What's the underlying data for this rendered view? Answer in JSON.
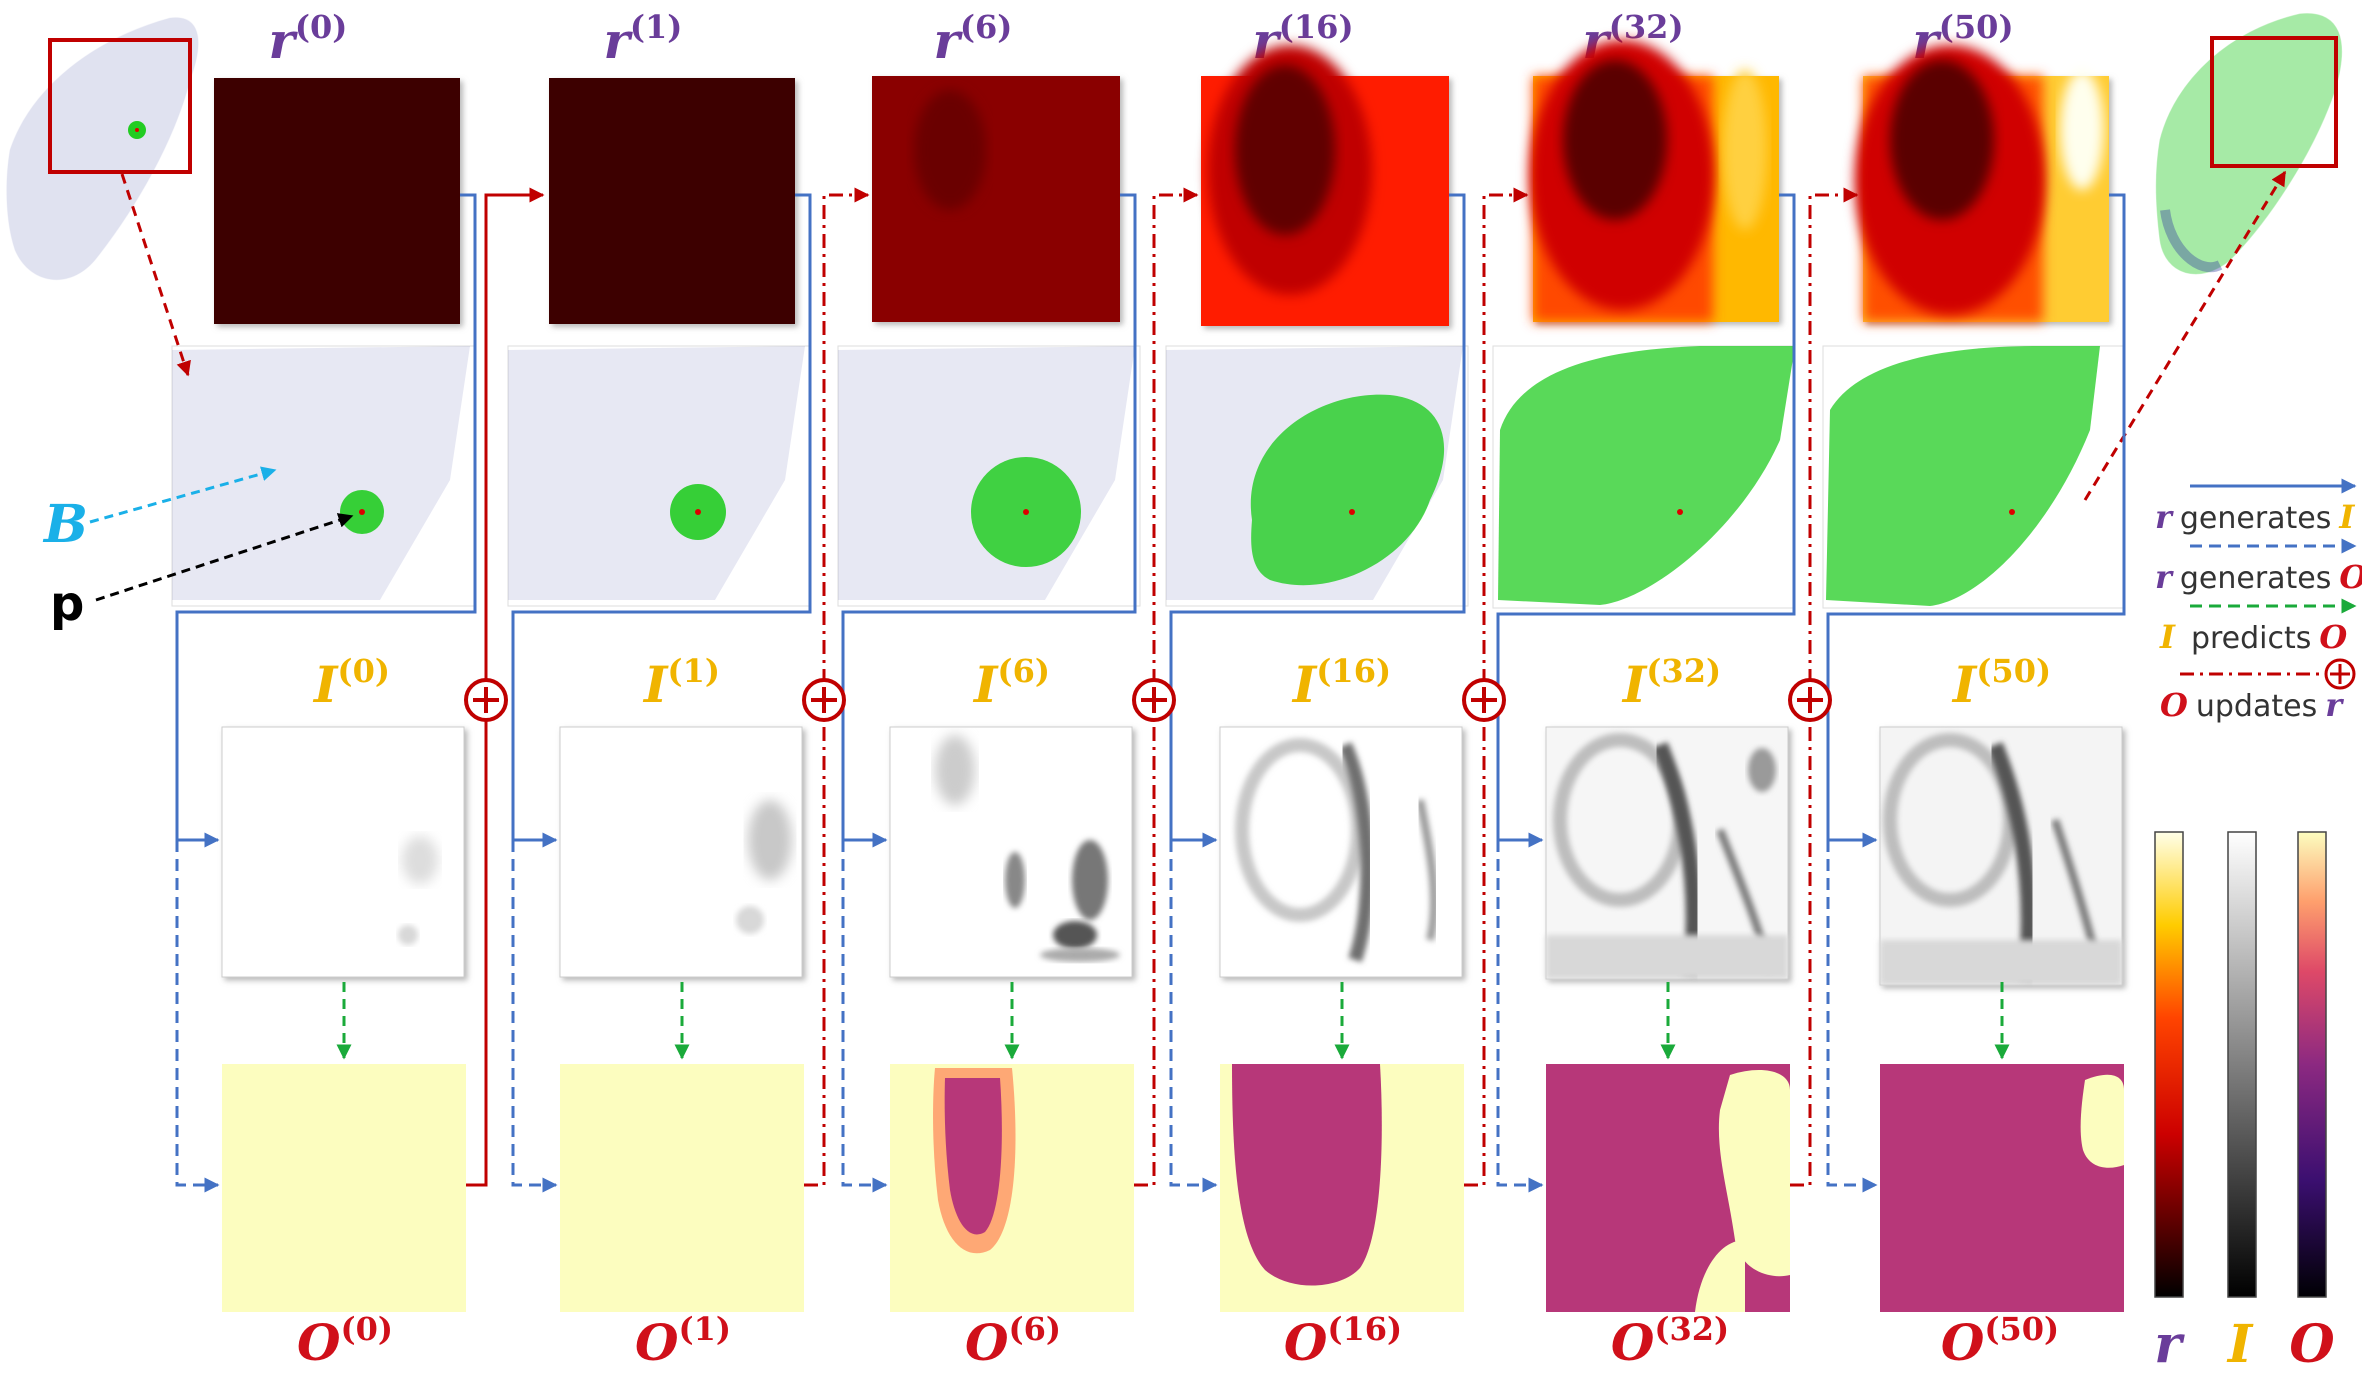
{
  "colors": {
    "r_label": "#6a3d9a",
    "i_label": "#f0b400",
    "o_label": "#d0101a",
    "blue_arrow": "#4472c4",
    "green_arrow": "#1aaa3a",
    "red_arrow": "#c00000",
    "b_label": "#1ab0e8",
    "points_blue": "#3a44a0",
    "points_green": "#22cc22"
  },
  "labels": {
    "r": "r",
    "I": "I",
    "O": "O",
    "B": "B",
    "p": "p"
  },
  "iterations": [
    {
      "superscript": "(0)"
    },
    {
      "superscript": "(1)"
    },
    {
      "superscript": "(6)"
    },
    {
      "superscript": "(16)"
    },
    {
      "superscript": "(32)"
    },
    {
      "superscript": "(50)"
    }
  ],
  "legend": {
    "items": [
      {
        "symbol": "r",
        "text": "generates",
        "target": "I"
      },
      {
        "symbol": "r",
        "text": "generates",
        "target": "O"
      },
      {
        "symbol": "I",
        "text": "predicts",
        "target": "O"
      },
      {
        "symbol": "O",
        "text": "updates",
        "target": "r"
      }
    ]
  },
  "colorbars": [
    {
      "symbol": "r",
      "scale": "hot"
    },
    {
      "symbol": "I",
      "scale": "gray"
    },
    {
      "symbol": "O",
      "scale": "magma"
    }
  ],
  "plus_symbol": "⊕"
}
